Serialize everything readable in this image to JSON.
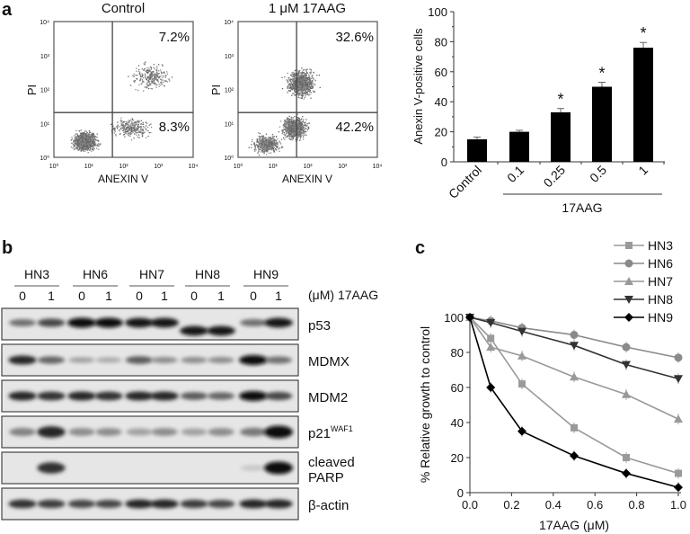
{
  "panels": {
    "a": "a",
    "b": "b",
    "c": "c"
  },
  "flow": [
    {
      "title": "Control",
      "xlabel": "ANEXIN V",
      "ylabel": "PI",
      "upper_right": "7.2%",
      "lower_right": "8.3%",
      "ticks": [
        "10⁰",
        "10¹",
        "10²",
        "10³",
        "10⁴"
      ]
    },
    {
      "title": "1 μM 17AAG",
      "xlabel": "ANEXIN V",
      "ylabel": "PI",
      "upper_right": "32.6%",
      "lower_right": "42.2%",
      "ticks": [
        "10⁰",
        "10¹",
        "10²",
        "10³",
        "10⁴"
      ]
    }
  ],
  "blot": {
    "cell_lines": [
      "HN3",
      "HN6",
      "HN7",
      "HN8",
      "HN9"
    ],
    "doses": [
      "0",
      "1",
      "0",
      "1",
      "0",
      "1",
      "0",
      "1",
      "0",
      "1"
    ],
    "dose_label": "(μM) 17AAG",
    "rows": [
      {
        "label": "p53",
        "sup": "",
        "intensity": [
          0.5,
          0.7,
          1,
          1,
          0.95,
          0.95,
          0.95,
          0.95,
          0.5,
          0.95
        ]
      },
      {
        "label": "MDMX",
        "sup": "",
        "intensity": [
          0.85,
          0.55,
          0.25,
          0.2,
          0.6,
          0.35,
          0.35,
          0.35,
          1,
          0.5
        ]
      },
      {
        "label": "MDM2",
        "sup": "",
        "intensity": [
          0.85,
          0.8,
          0.85,
          0.8,
          0.85,
          0.85,
          0.6,
          0.55,
          1,
          0.7
        ]
      },
      {
        "label": "p21",
        "sup": "WAF1",
        "intensity": [
          0.4,
          0.85,
          0.35,
          0.35,
          0.25,
          0.35,
          0.25,
          0.35,
          0.45,
          1
        ]
      },
      {
        "label": "cleaved",
        "label2": "PARP",
        "sup": "",
        "intensity": [
          0,
          0.8,
          0,
          0,
          0,
          0,
          0,
          0,
          0.05,
          1
        ]
      },
      {
        "label": "β-actin",
        "sup": "",
        "intensity": [
          0.8,
          0.75,
          0.7,
          0.7,
          0.85,
          0.85,
          0.75,
          0.7,
          0.85,
          0.85
        ]
      }
    ]
  },
  "chart_data": [
    {
      "type": "bar",
      "categories": [
        "Control",
        "0.1",
        "0.25",
        "0.5",
        "1"
      ],
      "values": [
        15,
        20,
        33,
        50,
        76
      ],
      "errors": [
        1.5,
        1,
        2.5,
        3,
        3.5
      ],
      "significant": [
        false,
        false,
        true,
        true,
        true
      ],
      "significance_mark": "*",
      "group_label": "17AAG",
      "ylabel": "Anexin V-positive cells",
      "ylim": [
        0,
        100
      ],
      "yticks": [
        "0",
        "20",
        "40",
        "60",
        "80",
        "100"
      ]
    },
    {
      "type": "line",
      "x": [
        0,
        0.1,
        0.25,
        0.5,
        0.75,
        1.0
      ],
      "series": [
        {
          "name": "HN3",
          "marker": "square",
          "color": "#9a9a9a",
          "values": [
            100,
            88,
            62,
            37,
            20,
            11
          ]
        },
        {
          "name": "HN6",
          "marker": "circle",
          "color": "#8a8a8a",
          "values": [
            100,
            98,
            94,
            90,
            83,
            77
          ]
        },
        {
          "name": "HN7",
          "marker": "triangle-up",
          "color": "#999999",
          "values": [
            100,
            83,
            78,
            66,
            56,
            42
          ]
        },
        {
          "name": "HN8",
          "marker": "triangle-down",
          "color": "#333333",
          "values": [
            100,
            97,
            92,
            84,
            73,
            65
          ]
        },
        {
          "name": "HN9",
          "marker": "diamond",
          "color": "#000000",
          "values": [
            100,
            60,
            35,
            21,
            11,
            3
          ]
        }
      ],
      "xlabel": "17AAG (μM)",
      "ylabel": "% Relative growth to control",
      "xlim": [
        0,
        1.0
      ],
      "ylim": [
        0,
        100
      ],
      "xticks": [
        "0.0",
        "0.2",
        "0.4",
        "0.6",
        "0.8",
        "1.0"
      ],
      "yticks": [
        "0",
        "20",
        "40",
        "60",
        "80",
        "100"
      ],
      "legend": "top-right"
    }
  ]
}
